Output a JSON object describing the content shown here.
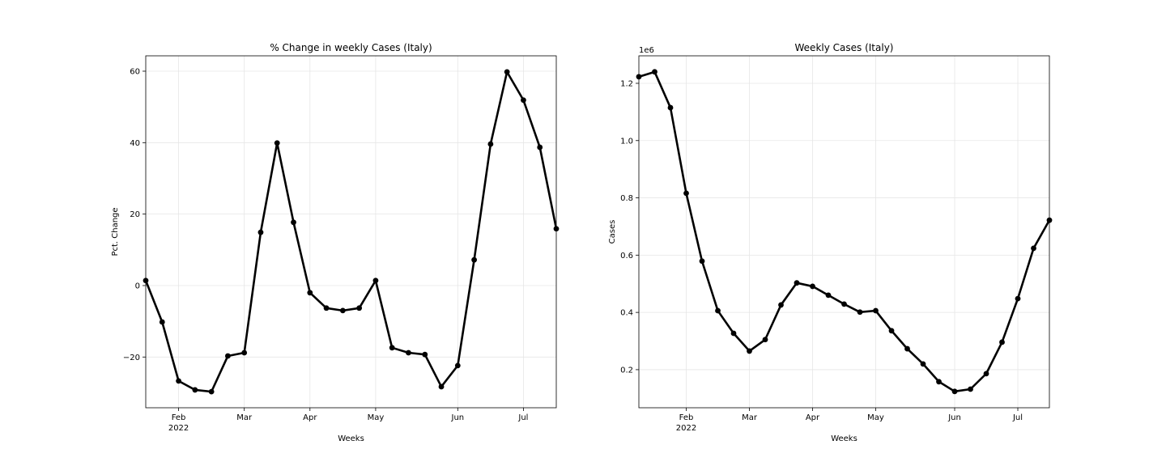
{
  "chart_data": [
    {
      "type": "line",
      "title": "% Change in weekly Cases (Italy)",
      "xlabel": "Weeks",
      "ylabel": "Pct. Change",
      "x": [
        0,
        1,
        2,
        3,
        4,
        5,
        6,
        7,
        8,
        9,
        10,
        11,
        12,
        13,
        14,
        15,
        16,
        17,
        18,
        19,
        20,
        21,
        22,
        23,
        24,
        25
      ],
      "values": [
        1.4,
        -10.2,
        -26.7,
        -29.2,
        -29.7,
        -19.7,
        -18.8,
        14.9,
        39.9,
        17.7,
        -2.0,
        -6.3,
        -7.0,
        -6.3,
        1.4,
        -17.4,
        -18.8,
        -19.3,
        -28.3,
        -22.4,
        7.2,
        39.6,
        59.8,
        51.9,
        38.7,
        15.9
      ],
      "color": "#000000",
      "grid": true,
      "xlim": [
        0,
        25
      ],
      "xticks": [
        {
          "value": 2,
          "label": "Feb\n2022"
        },
        {
          "value": 6,
          "label": "Mar"
        },
        {
          "value": 10,
          "label": "Apr"
        },
        {
          "value": 14,
          "label": "May"
        },
        {
          "value": 19,
          "label": "Jun"
        },
        {
          "value": 23,
          "label": "Jul"
        }
      ],
      "ylim": [
        -34.2,
        64.3
      ],
      "yticks": [
        {
          "value": -20,
          "label": "−20"
        },
        0,
        20,
        40,
        60
      ]
    },
    {
      "type": "line",
      "title": "Weekly Cases (Italy)",
      "xlabel": "Weeks",
      "ylabel": "Cases",
      "y_offset_label": "1e6",
      "x": [
        0,
        1,
        2,
        3,
        4,
        5,
        6,
        7,
        8,
        9,
        10,
        11,
        12,
        13,
        14,
        15,
        16,
        17,
        18,
        19,
        20,
        21,
        22,
        23,
        24,
        25,
        26
      ],
      "values": [
        1223000,
        1240000,
        1115000,
        816000,
        579000,
        406000,
        327000,
        265000,
        305000,
        426000,
        503000,
        491000,
        460000,
        429000,
        401000,
        406000,
        336000,
        273000,
        220000,
        158000,
        124000,
        132000,
        186000,
        296000,
        448000,
        624000,
        722000
      ],
      "color": "#000000",
      "grid": true,
      "xlim": [
        0,
        26
      ],
      "xticks": [
        {
          "value": 3,
          "label": "Feb\n2022"
        },
        {
          "value": 7,
          "label": "Mar"
        },
        {
          "value": 11,
          "label": "Apr"
        },
        {
          "value": 15,
          "label": "May"
        },
        {
          "value": 20,
          "label": "Jun"
        },
        {
          "value": 24,
          "label": "Jul"
        }
      ],
      "ylim": [
        67000,
        1296000
      ],
      "yticks": [
        {
          "value": 200000,
          "label": "0.2"
        },
        {
          "value": 400000,
          "label": "0.4"
        },
        {
          "value": 600000,
          "label": "0.6"
        },
        {
          "value": 800000,
          "label": "0.8"
        },
        {
          "value": 1000000,
          "label": "1.0"
        },
        {
          "value": 1200000,
          "label": "1.2"
        }
      ]
    }
  ]
}
